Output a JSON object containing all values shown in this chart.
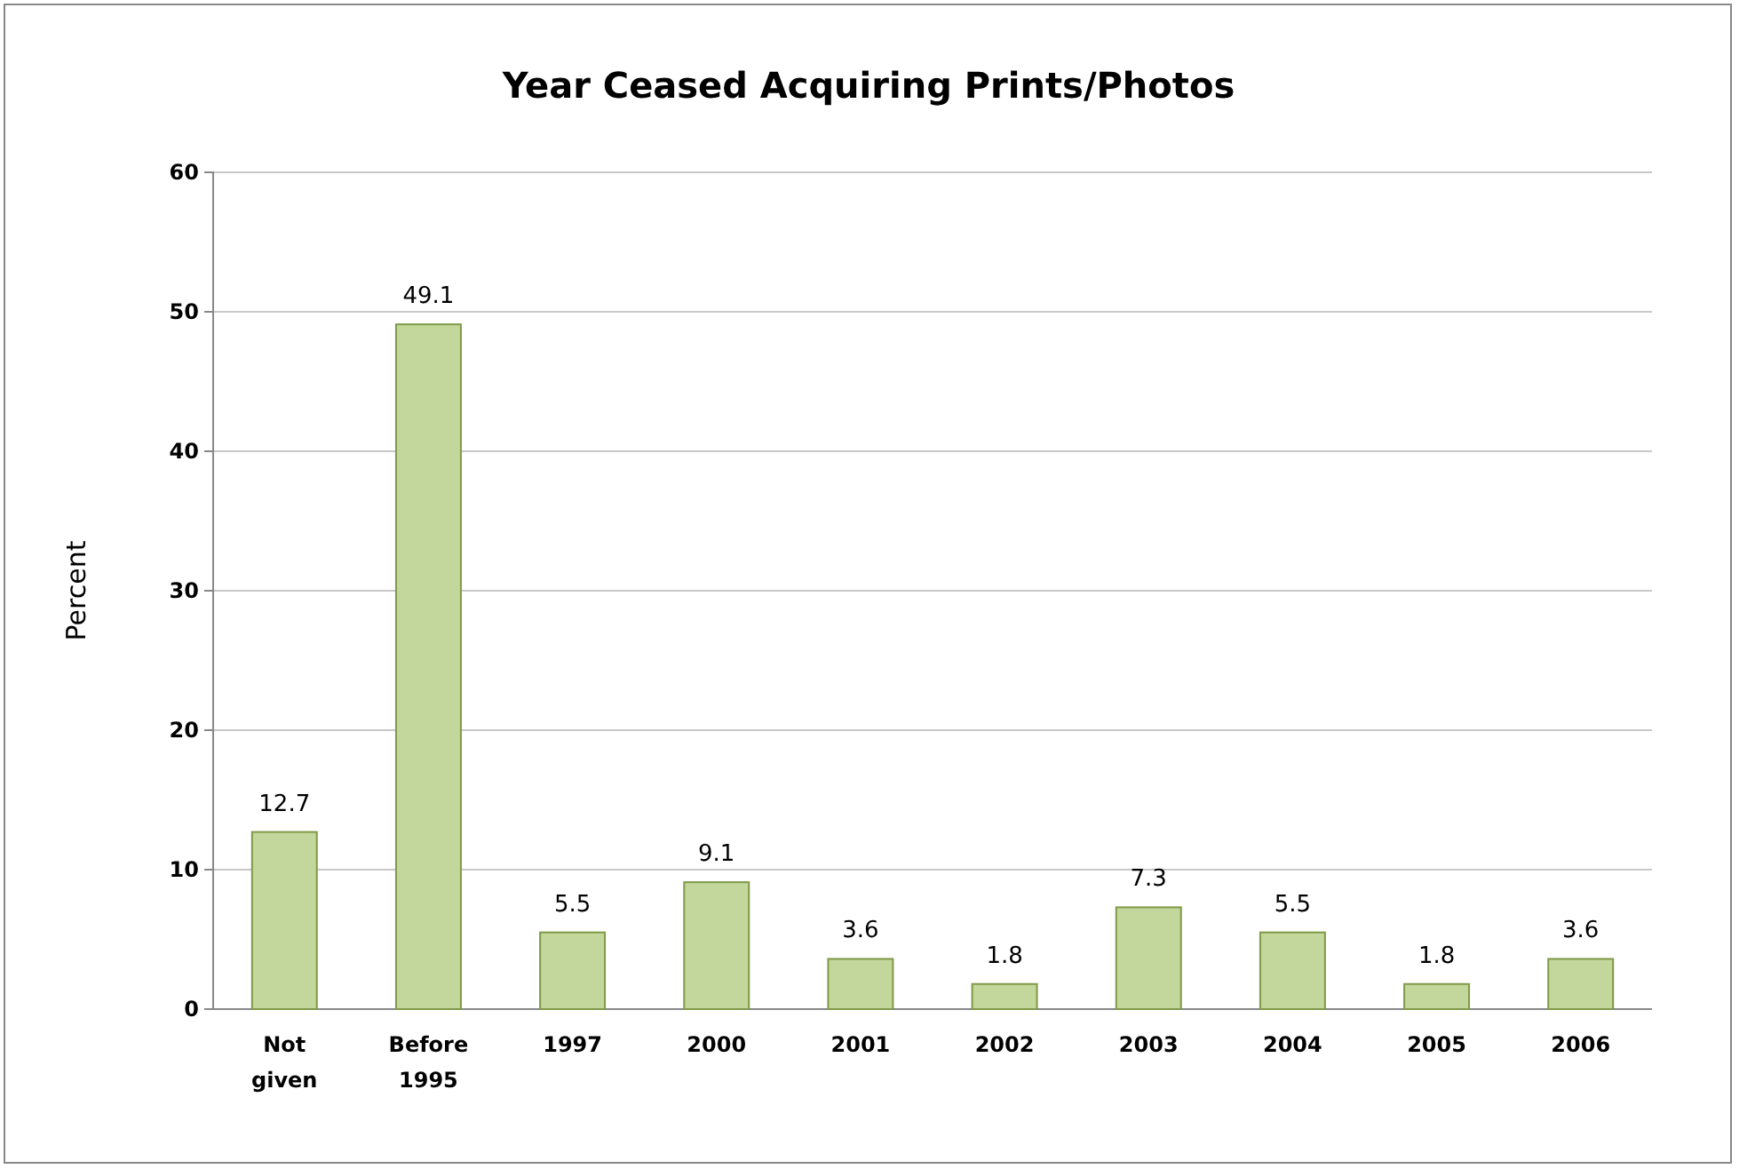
{
  "chart_data": {
    "type": "bar",
    "title": "Year Ceased Acquiring Prints/Photos",
    "ylabel": "Percent",
    "categories": [
      "Not given",
      "Before 1995",
      "1997",
      "2000",
      "2001",
      "2002",
      "2003",
      "2004",
      "2005",
      "2006"
    ],
    "values": [
      12.7,
      49.1,
      5.5,
      9.1,
      3.6,
      1.8,
      7.3,
      5.5,
      1.8,
      3.6
    ],
    "color": "#c3d69b",
    "ylim": [
      0,
      60
    ],
    "yticks": [
      0,
      10,
      20,
      30,
      40,
      50,
      60
    ],
    "grid": "y",
    "data_labels": true
  }
}
